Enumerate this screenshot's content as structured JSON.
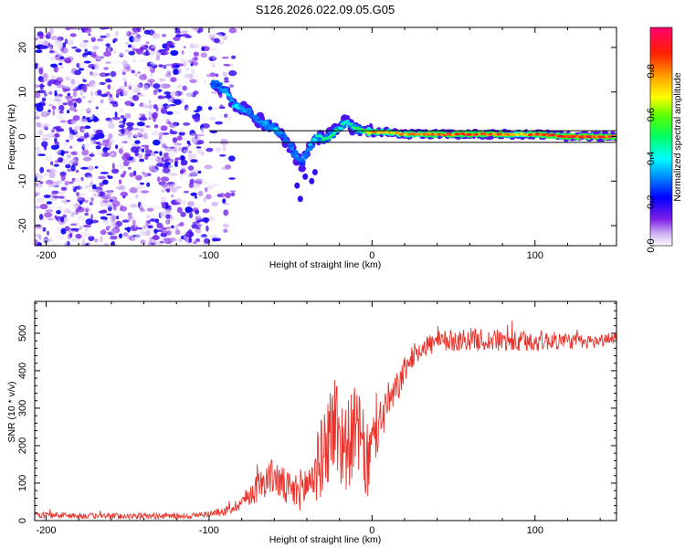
{
  "title": "S126.2026.022.09.05.G05",
  "colors": {
    "snr_line": "#e8332c",
    "frame": "#000000",
    "track": "#000000"
  },
  "chart_data": [
    {
      "type": "heatmap",
      "name": "spectrogram",
      "xlabel": "Height of straight line (km)",
      "ylabel": "Frequency (Hz)",
      "xlim": [
        -207,
        150
      ],
      "ylim": [
        -24.5,
        24.5
      ],
      "xticks": [
        -200,
        -100,
        0,
        100
      ],
      "xtick_labels": [
        "-200",
        "-100",
        "0",
        "100"
      ],
      "yticks": [
        20,
        10,
        0,
        -10,
        -20
      ],
      "ytick_labels": [
        "20",
        "10",
        "0",
        "-10",
        "-20"
      ],
      "colorbar": {
        "label": "Normalized spectral amplitude",
        "range": [
          0.0,
          1.0
        ],
        "ticks": [
          0.0,
          0.2,
          0.4,
          0.6,
          0.8
        ],
        "tick_labels": [
          "0.0",
          "0.2",
          "0.4",
          "0.6",
          "0.8"
        ],
        "colormap": "rainbow (white-violet-blue-cyan-green-yellow-orange-red-magenta)"
      },
      "ridge": {
        "x": [
          -98,
          -92,
          -88,
          -85,
          -80,
          -76,
          -72,
          -68,
          -64,
          -58,
          -54,
          -50,
          -46,
          -43,
          -40,
          -37,
          -33,
          -29,
          -25,
          -21,
          -18,
          -15,
          -12,
          -8,
          -3,
          0,
          10,
          20,
          40,
          60,
          80,
          90,
          100,
          120,
          150
        ],
        "freq": [
          12,
          11,
          9.5,
          7,
          6.5,
          5.5,
          4,
          3.5,
          2.5,
          1.5,
          0,
          -2.5,
          -4.5,
          -6.5,
          -3.5,
          -1,
          0,
          -0.5,
          0.5,
          1.5,
          2.5,
          3.5,
          2,
          1.5,
          1,
          1,
          1,
          0.5,
          0.5,
          0.5,
          0.5,
          0.5,
          0.5,
          0,
          0
        ],
        "amplitude": [
          0.25,
          0.3,
          0.35,
          0.4,
          0.35,
          0.3,
          0.3,
          0.3,
          0.35,
          0.35,
          0.3,
          0.3,
          0.3,
          0.25,
          0.3,
          0.4,
          0.45,
          0.5,
          0.5,
          0.45,
          0.5,
          0.4,
          0.55,
          0.5,
          0.65,
          0.8,
          0.75,
          0.75,
          0.85,
          0.85,
          0.85,
          0.7,
          0.85,
          0.9,
          0.9
        ]
      },
      "model_line": {
        "x": [
          -100,
          150
        ],
        "freq_upper": [
          1.3,
          1.3
        ],
        "freq_lower": [
          -1.3,
          -1.3
        ]
      },
      "noise_region": {
        "x_range": [
          -207,
          -85
        ],
        "amplitude_range": [
          0.0,
          0.22
        ]
      }
    },
    {
      "type": "line",
      "name": "snr",
      "xlabel": "Height of straight line (km)",
      "ylabel": "SNR (10 * v/v)",
      "xlim": [
        -207,
        150
      ],
      "ylim": [
        0,
        585
      ],
      "xticks": [
        -200,
        -100,
        0,
        100
      ],
      "xtick_labels": [
        "-200",
        "-100",
        "0",
        "100"
      ],
      "yticks": [
        0,
        100,
        200,
        300,
        400,
        500
      ],
      "ytick_labels": [
        "0",
        "100",
        "200",
        "300",
        "400",
        "500"
      ],
      "series": [
        {
          "name": "SNR",
          "x": [
            -207,
            -190,
            -170,
            -150,
            -130,
            -110,
            -100,
            -90,
            -85,
            -80,
            -75,
            -70,
            -65,
            -60,
            -55,
            -50,
            -45,
            -40,
            -35,
            -30,
            -27,
            -25,
            -22,
            -20,
            -17,
            -15,
            -12,
            -10,
            -7,
            -5,
            -2,
            0,
            3,
            5,
            8,
            10,
            13,
            15,
            18,
            20,
            25,
            30,
            35,
            40,
            50,
            60,
            70,
            80,
            90,
            100,
            110,
            120,
            130,
            140,
            150
          ],
          "values": [
            15,
            14,
            12,
            12,
            12,
            13,
            18,
            25,
            35,
            50,
            70,
            90,
            110,
            120,
            95,
            75,
            80,
            95,
            130,
            180,
            220,
            250,
            260,
            230,
            200,
            200,
            230,
            250,
            220,
            170,
            150,
            210,
            230,
            260,
            300,
            320,
            330,
            350,
            380,
            400,
            440,
            460,
            470,
            475,
            480,
            485,
            480,
            480,
            475,
            480,
            480,
            480,
            475,
            480,
            490
          ],
          "noise_amplitude": [
            8,
            8,
            8,
            8,
            8,
            8,
            8,
            12,
            15,
            20,
            30,
            40,
            45,
            50,
            50,
            50,
            55,
            60,
            90,
            110,
            130,
            130,
            150,
            150,
            120,
            120,
            120,
            110,
            110,
            120,
            100,
            80,
            70,
            70,
            60,
            50,
            50,
            45,
            40,
            35,
            30,
            30,
            30,
            30,
            30,
            30,
            30,
            30,
            30,
            30,
            25,
            22,
            20,
            18,
            18
          ]
        }
      ]
    }
  ]
}
